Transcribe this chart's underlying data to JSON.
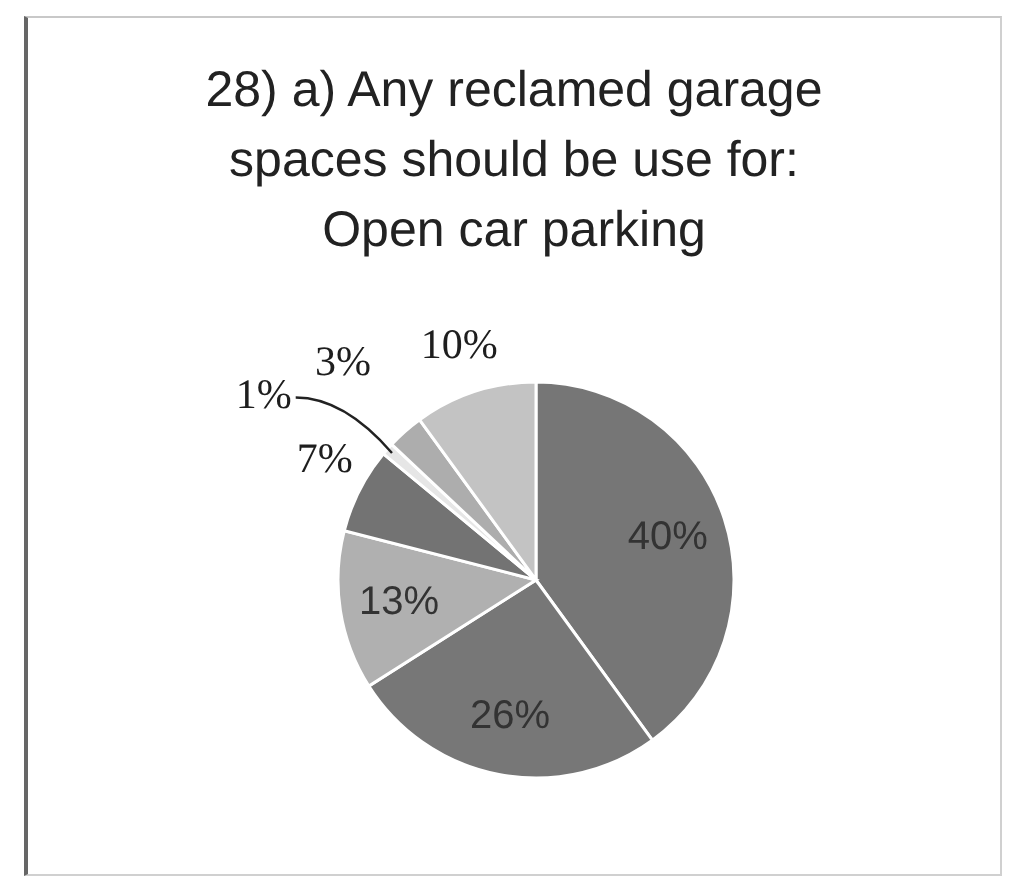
{
  "chart_data": {
    "type": "pie",
    "title": "28) a) Any reclamed garage spaces should be use for: Open car parking",
    "categories": [
      null,
      null,
      null,
      null,
      null,
      null,
      null
    ],
    "values": [
      40,
      26,
      13,
      7,
      1,
      3,
      10
    ],
    "colors": [
      "#767676",
      "#777777",
      "#b0b0b0",
      "#737373",
      "#e6e6e6",
      "#adadad",
      "#c3c3c3"
    ],
    "value_labels": [
      "40%",
      "26%",
      "13%",
      "7%",
      "1%",
      "3%",
      "10%"
    ]
  }
}
